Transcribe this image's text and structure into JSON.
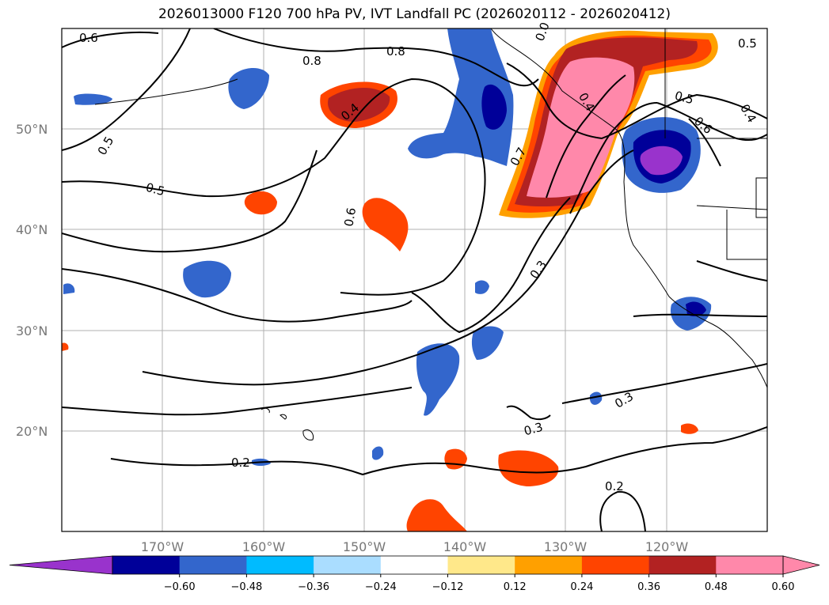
{
  "title": "2026013000 F120 700 hPa PV, IVT Landfall PC (2026020112 - 2026020412)",
  "lat_labels": [
    "50°N",
    "40°N",
    "30°N",
    "20°N"
  ],
  "lon_labels": [
    "170°W",
    "160°W",
    "150°W",
    "140°W",
    "130°W",
    "120°W"
  ],
  "colorbar": {
    "ticks": [
      "−0.60",
      "−0.48",
      "−0.36",
      "−0.24",
      "−0.12",
      "0.12",
      "0.24",
      "0.36",
      "0.48",
      "0.60"
    ],
    "colors": [
      "#9933cc",
      "#000099",
      "#3366cc",
      "#00bbff",
      "#aaddff",
      "#ffffff",
      "#ffe88a",
      "#ffa000",
      "#ff4400",
      "#b22222",
      "#ff88aa",
      "#ff88aa"
    ]
  },
  "contour_labels": [
    "0.6",
    "0.8",
    "0.8",
    "0.0",
    "0.5",
    "0.4",
    "0.5",
    "0.6",
    "0.7",
    "0.5",
    "0.6",
    "0.4",
    "0.5",
    "0.4",
    "0.3",
    "0.3",
    "0.3",
    "0.2",
    "0.2"
  ],
  "colors": {
    "negative_dark": "#000099",
    "negative_mid": "#3366cc",
    "positive_mid": "#ff4400",
    "positive_high": "#ff88aa"
  }
}
